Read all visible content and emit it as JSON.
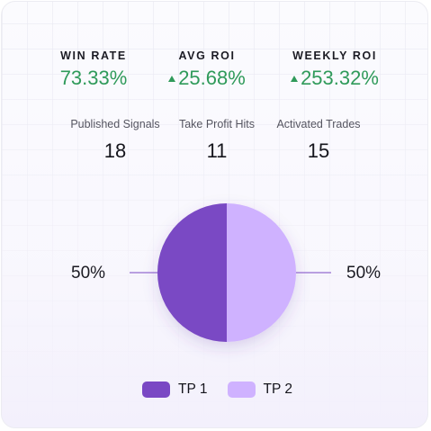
{
  "stats": {
    "win_rate": {
      "label": "WIN RATE",
      "value": "73.33%"
    },
    "avg_roi": {
      "label": "AVG ROI",
      "value": "25.68%",
      "trend": "up"
    },
    "weekly_roi": {
      "label": "WEEKLY ROI",
      "value": "253.32%",
      "trend": "up"
    }
  },
  "counts": {
    "published": {
      "label": "Published Signals",
      "value": "18"
    },
    "tp_hits": {
      "label": "Take Profit Hits",
      "value": "11"
    },
    "activated": {
      "label": "Activated Trades",
      "value": "15"
    }
  },
  "colors": {
    "positive": "#2f9a5a",
    "tp1": "#7a48c4",
    "tp2": "#cfb2ff"
  },
  "chart_data": {
    "type": "pie",
    "categories": [
      "TP 1",
      "TP 2"
    ],
    "values": [
      50,
      50
    ],
    "labels": [
      "50%",
      "50%"
    ],
    "legend": "bottom"
  }
}
